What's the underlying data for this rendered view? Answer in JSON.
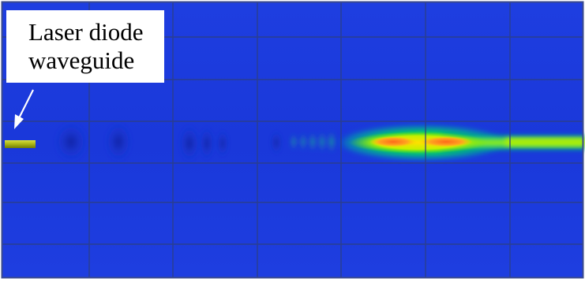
{
  "annotation": {
    "line1": "Laser diode",
    "line2": "waveguide"
  },
  "colors": {
    "background": "#1f3fe3",
    "grid": "#2c3f86",
    "waveguide": "#a8b414",
    "beam_outer": "#00d85a",
    "beam_mid": "#c6f000",
    "beam_core": "#ff8a1f",
    "arrow": "#ffffff",
    "label_background": "#ffffff",
    "label_text": "#000000"
  },
  "icons": {
    "pointer": "arrow-icon"
  }
}
